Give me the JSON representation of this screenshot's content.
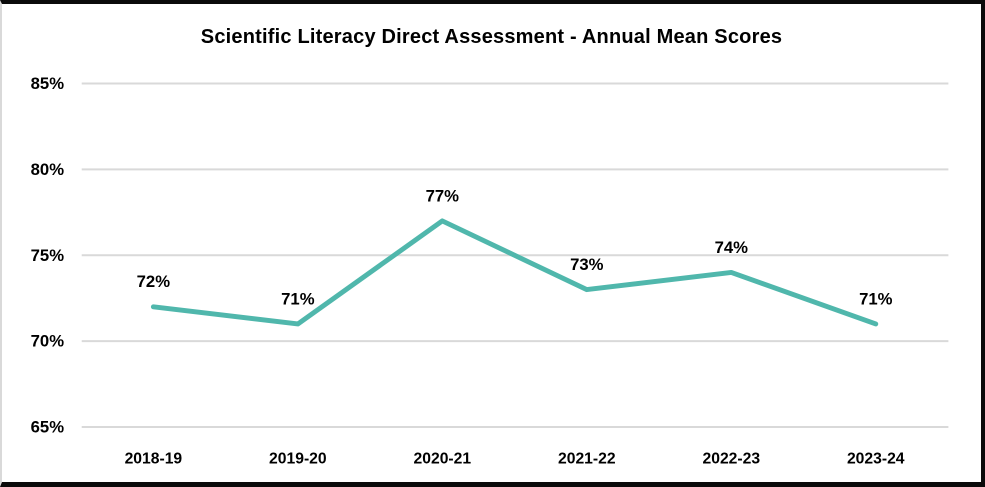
{
  "chart_data": {
    "type": "line",
    "title": "Scientific Literacy Direct Assessment - Annual Mean Scores",
    "categories": [
      "2018-19",
      "2019-20",
      "2020-21",
      "2021-22",
      "2022-23",
      "2023-24"
    ],
    "values": [
      72,
      71,
      77,
      73,
      74,
      71
    ],
    "data_labels": [
      "72%",
      "71%",
      "77%",
      "73%",
      "74%",
      "71%"
    ],
    "unit": "%",
    "xlabel": "",
    "ylabel": "",
    "ylim": [
      65,
      85
    ],
    "ytick_step": 5,
    "ytick_labels": [
      "65%",
      "70%",
      "75%",
      "80%",
      "85%"
    ],
    "grid": true,
    "legend": "none",
    "line_color": "#50B7AC",
    "gridline_color": "#D9D9D9",
    "text_color": "#000000",
    "background": "#FFFFFF"
  }
}
